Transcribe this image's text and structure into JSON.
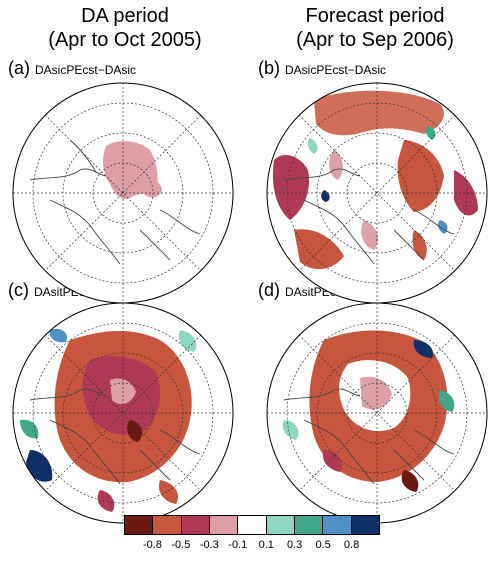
{
  "columns": [
    {
      "line1": "DA period",
      "line2": "(Apr to Oct 2005)"
    },
    {
      "line1": "Forecast period",
      "line2": "(Apr to Sep 2006)"
    }
  ],
  "panels": [
    {
      "letter": "(a)",
      "expr": "DAsicPEcst−DAsic"
    },
    {
      "letter": "(b)",
      "expr": "DAsicPEcst−DAsic"
    },
    {
      "letter": "(c)",
      "expr": "DAsitPEcst−DAsit"
    },
    {
      "letter": "(d)",
      "expr": "DAsitPEcst−DAsit"
    }
  ],
  "colorbar": {
    "colors": [
      "#6b1a0f",
      "#c8553d",
      "#b03a55",
      "#dea0a6",
      "#ffffff",
      "#8fd6c2",
      "#3fa88a",
      "#4f8fc6",
      "#0f2f66"
    ],
    "tick_labels": [
      "-0.8",
      "-0.5",
      "-0.3",
      "-0.1",
      "0.1",
      "0.3",
      "0.5",
      "0.8"
    ]
  }
}
